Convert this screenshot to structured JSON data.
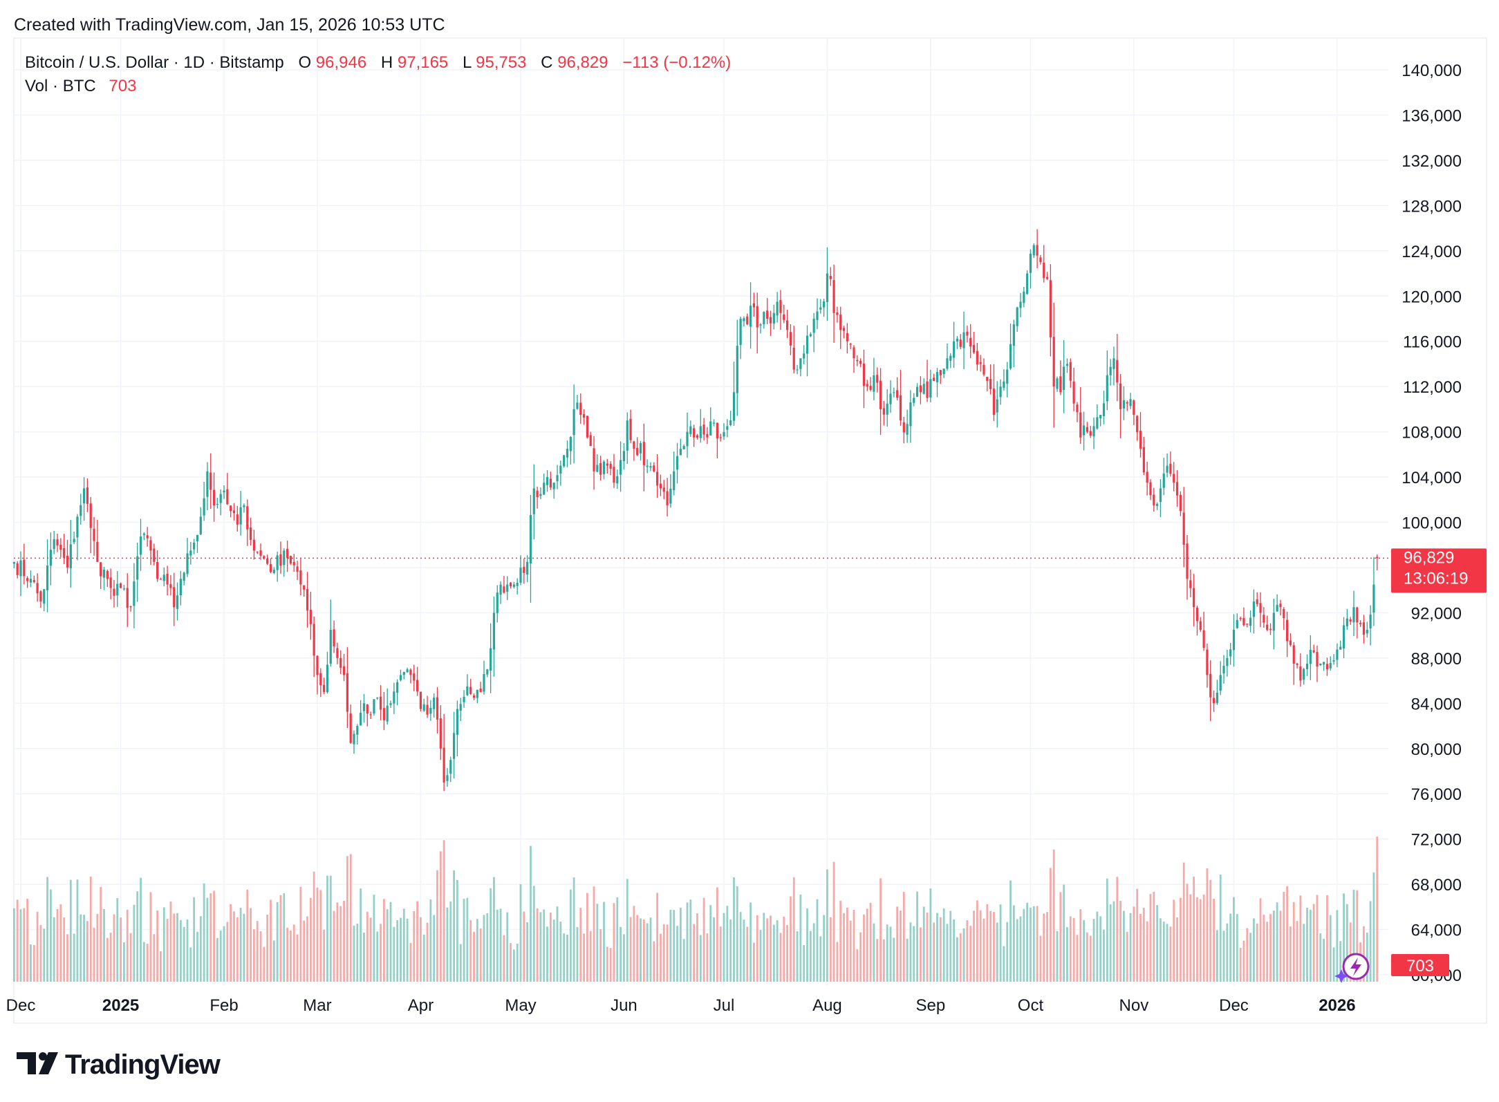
{
  "header": {
    "created_with": "Created with TradingView.com, Jan 15, 2026 10:53 UTC"
  },
  "legend": {
    "symbol": "Bitcoin / U.S. Dollar · 1D · Bitstamp",
    "open_label": "O",
    "open_value": "96,946",
    "high_label": "H",
    "high_value": "97,165",
    "low_label": "L",
    "low_value": "95,753",
    "close_label": "C",
    "close_value": "96,829",
    "change": "−113 (−0.12%)",
    "vol_label": "Vol · BTC",
    "vol_value": "703"
  },
  "price_tag": {
    "price": "96,829",
    "countdown": "13:06:19"
  },
  "volume_tag": "703",
  "brand": {
    "name": "TradingView"
  },
  "colors": {
    "up": "#26a69a",
    "down": "#f23645",
    "up_volume": "#94cfc8",
    "down_volume": "#f7a9a7",
    "grid": "#f0f3fa",
    "axis_text": "#131722",
    "price_line": "#f23645",
    "lightning": "#9c27b0"
  },
  "chart_data": {
    "type": "candlestick",
    "title": "Bitcoin / U.S. Dollar · 1D · Bitstamp",
    "interval": "1D",
    "xlabel": "",
    "ylabel": "",
    "ylim": [
      59200,
      141200
    ],
    "y_ticks": [
      60000,
      64000,
      68000,
      72000,
      76000,
      80000,
      84000,
      88000,
      92000,
      96000,
      100000,
      104000,
      108000,
      112000,
      116000,
      120000,
      124000,
      128000,
      132000,
      136000,
      140000
    ],
    "y_tick_labels": [
      "60,000",
      "64,000",
      "68,000",
      "72,000",
      "76,000",
      "80,000",
      "84,000",
      "88,000",
      "92,000",
      "96,000",
      "100,000",
      "104,000",
      "108,000",
      "112,000",
      "116,000",
      "120,000",
      "124,000",
      "128,000",
      "132,000",
      "136,000",
      "140,000"
    ],
    "x_ticks": [
      {
        "label": "Dec",
        "day": 0,
        "bold": false
      },
      {
        "label": "2025",
        "day": 30,
        "bold": true
      },
      {
        "label": "Feb",
        "day": 61,
        "bold": false
      },
      {
        "label": "Mar",
        "day": 89,
        "bold": false
      },
      {
        "label": "Apr",
        "day": 120,
        "bold": false
      },
      {
        "label": "May",
        "day": 150,
        "bold": false
      },
      {
        "label": "Jun",
        "day": 181,
        "bold": false
      },
      {
        "label": "Jul",
        "day": 211,
        "bold": false
      },
      {
        "label": "Aug",
        "day": 242,
        "bold": false
      },
      {
        "label": "Sep",
        "day": 273,
        "bold": false
      },
      {
        "label": "Oct",
        "day": 303,
        "bold": false
      },
      {
        "label": "Nov",
        "day": 334,
        "bold": false
      },
      {
        "label": "Dec",
        "day": 364,
        "bold": false
      },
      {
        "label": "2026",
        "day": 395,
        "bold": true
      }
    ],
    "start_day_offset": -2,
    "last_price": 96829,
    "anchors": [
      [
        -2,
        96500
      ],
      [
        3,
        95000
      ],
      [
        6,
        93000
      ],
      [
        10,
        98500
      ],
      [
        14,
        96000
      ],
      [
        17,
        100500
      ],
      [
        19,
        103000
      ],
      [
        21,
        99500
      ],
      [
        23,
        96500
      ],
      [
        26,
        95000
      ],
      [
        28,
        93500
      ],
      [
        30,
        94200
      ],
      [
        33,
        92500
      ],
      [
        35,
        97000
      ],
      [
        37,
        99000
      ],
      [
        39,
        97500
      ],
      [
        41,
        95000
      ],
      [
        44,
        94500
      ],
      [
        46,
        92500
      ],
      [
        48,
        95000
      ],
      [
        51,
        97500
      ],
      [
        54,
        100500
      ],
      [
        56,
        104500
      ],
      [
        58,
        101500
      ],
      [
        60,
        102500
      ],
      [
        63,
        101000
      ],
      [
        65,
        99800
      ],
      [
        67,
        101500
      ],
      [
        70,
        97500
      ],
      [
        73,
        96800
      ],
      [
        76,
        95800
      ],
      [
        79,
        97500
      ],
      [
        82,
        96200
      ],
      [
        84,
        94500
      ],
      [
        87,
        91000
      ],
      [
        89,
        86500
      ],
      [
        91,
        85000
      ],
      [
        93,
        90500
      ],
      [
        95,
        88000
      ],
      [
        97,
        86500
      ],
      [
        99,
        80500
      ],
      [
        101,
        82000
      ],
      [
        103,
        84000
      ],
      [
        105,
        83000
      ],
      [
        107,
        84500
      ],
      [
        109,
        82500
      ],
      [
        111,
        84000
      ],
      [
        114,
        86500
      ],
      [
        116,
        87000
      ],
      [
        118,
        86000
      ],
      [
        120,
        83500
      ],
      [
        122,
        83000
      ],
      [
        124,
        84500
      ],
      [
        126,
        80000
      ],
      [
        127,
        77000
      ],
      [
        129,
        79000
      ],
      [
        131,
        83500
      ],
      [
        134,
        85500
      ],
      [
        136,
        84500
      ],
      [
        138,
        85000
      ],
      [
        140,
        87000
      ],
      [
        142,
        92000
      ],
      [
        144,
        94500
      ],
      [
        146,
        94500
      ],
      [
        148,
        94500
      ],
      [
        150,
        96000
      ],
      [
        152,
        96500
      ],
      [
        154,
        103000
      ],
      [
        156,
        102500
      ],
      [
        158,
        104000
      ],
      [
        160,
        103500
      ],
      [
        162,
        105000
      ],
      [
        164,
        106500
      ],
      [
        166,
        110000
      ],
      [
        168,
        109500
      ],
      [
        170,
        107500
      ],
      [
        172,
        104500
      ],
      [
        174,
        104200
      ],
      [
        176,
        105000
      ],
      [
        178,
        103500
      ],
      [
        180,
        105500
      ],
      [
        182,
        109000
      ],
      [
        184,
        106500
      ],
      [
        186,
        107000
      ],
      [
        188,
        105000
      ],
      [
        190,
        104500
      ],
      [
        192,
        103000
      ],
      [
        194,
        101500
      ],
      [
        196,
        104500
      ],
      [
        198,
        106500
      ],
      [
        200,
        108000
      ],
      [
        202,
        107500
      ],
      [
        204,
        108500
      ],
      [
        206,
        107500
      ],
      [
        208,
        108800
      ],
      [
        210,
        107500
      ],
      [
        212,
        108500
      ],
      [
        214,
        111500
      ],
      [
        216,
        118000
      ],
      [
        218,
        117500
      ],
      [
        220,
        119000
      ],
      [
        222,
        117500
      ],
      [
        224,
        118000
      ],
      [
        226,
        118500
      ],
      [
        228,
        118500
      ],
      [
        230,
        117000
      ],
      [
        232,
        113500
      ],
      [
        234,
        114500
      ],
      [
        236,
        116500
      ],
      [
        238,
        118000
      ],
      [
        240,
        119000
      ],
      [
        242,
        122000
      ],
      [
        243,
        121500
      ],
      [
        244,
        118500
      ],
      [
        246,
        117000
      ],
      [
        248,
        116000
      ],
      [
        250,
        114500
      ],
      [
        252,
        114000
      ],
      [
        254,
        112000
      ],
      [
        256,
        113000
      ],
      [
        258,
        110000
      ],
      [
        260,
        110500
      ],
      [
        262,
        111500
      ],
      [
        264,
        109000
      ],
      [
        266,
        108700
      ],
      [
        268,
        111000
      ],
      [
        270,
        111500
      ],
      [
        272,
        111000
      ],
      [
        274,
        112500
      ],
      [
        276,
        113000
      ],
      [
        278,
        114500
      ],
      [
        280,
        116000
      ],
      [
        282,
        115500
      ],
      [
        284,
        116500
      ],
      [
        286,
        115000
      ],
      [
        288,
        114000
      ],
      [
        290,
        112500
      ],
      [
        292,
        109500
      ],
      [
        294,
        112000
      ],
      [
        296,
        113500
      ],
      [
        298,
        117500
      ],
      [
        300,
        119500
      ],
      [
        302,
        122000
      ],
      [
        304,
        124500
      ],
      [
        306,
        123000
      ],
      [
        308,
        121500
      ],
      [
        310,
        112000
      ],
      [
        312,
        111500
      ],
      [
        314,
        114000
      ],
      [
        316,
        110500
      ],
      [
        318,
        107500
      ],
      [
        320,
        108000
      ],
      [
        322,
        108500
      ],
      [
        324,
        109500
      ],
      [
        326,
        113000
      ],
      [
        328,
        114500
      ],
      [
        330,
        110000
      ],
      [
        332,
        110500
      ],
      [
        334,
        109500
      ],
      [
        336,
        106500
      ],
      [
        338,
        103500
      ],
      [
        340,
        101500
      ],
      [
        342,
        103000
      ],
      [
        344,
        105000
      ],
      [
        346,
        103500
      ],
      [
        348,
        101000
      ],
      [
        350,
        95000
      ],
      [
        352,
        92500
      ],
      [
        354,
        90500
      ],
      [
        356,
        86500
      ],
      [
        358,
        84000
      ],
      [
        360,
        86500
      ],
      [
        362,
        88000
      ],
      [
        364,
        90500
      ],
      [
        366,
        91500
      ],
      [
        368,
        91000
      ],
      [
        370,
        93000
      ],
      [
        372,
        92000
      ],
      [
        374,
        90500
      ],
      [
        376,
        92000
      ],
      [
        378,
        92500
      ],
      [
        380,
        89500
      ],
      [
        382,
        87500
      ],
      [
        384,
        86000
      ],
      [
        386,
        87500
      ],
      [
        388,
        88500
      ],
      [
        390,
        87500
      ],
      [
        392,
        87000
      ],
      [
        394,
        87800
      ],
      [
        396,
        89000
      ],
      [
        398,
        91500
      ],
      [
        400,
        92500
      ],
      [
        402,
        91000
      ],
      [
        404,
        90500
      ],
      [
        406,
        94500
      ],
      [
        407,
        96800
      ]
    ],
    "ohlc_last": {
      "open": 96946,
      "high": 97165,
      "low": 95753,
      "close": 96829
    },
    "volume_last": 703
  }
}
